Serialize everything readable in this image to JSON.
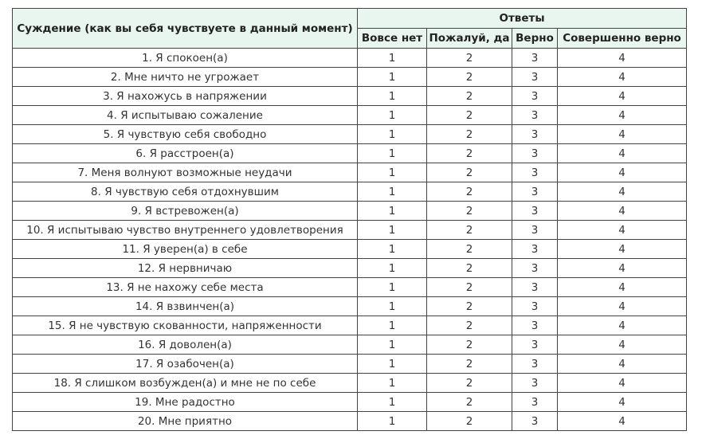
{
  "table": {
    "header": {
      "statement": "Суждение (как вы себя чувствуете в данный момент)",
      "answers": "Ответы",
      "columns": [
        "Вовсе нет",
        "Пожалуй, да",
        "Верно",
        "Совершенно верно"
      ]
    },
    "rows": [
      [
        "1. Я спокоен(а)",
        1,
        2,
        3,
        4
      ],
      [
        "2. Мне ничто не угрожает",
        1,
        2,
        3,
        4
      ],
      [
        "3. Я нахожусь в напряжении",
        1,
        2,
        3,
        4
      ],
      [
        "4. Я испытываю сожаление",
        1,
        2,
        3,
        4
      ],
      [
        "5. Я чувствую себя свободно",
        1,
        2,
        3,
        4
      ],
      [
        "6. Я расстроен(а)",
        1,
        2,
        3,
        4
      ],
      [
        "7. Меня волнуют возможные неудачи",
        1,
        2,
        3,
        4
      ],
      [
        "8. Я чувствую себя отдохнувшим",
        1,
        2,
        3,
        4
      ],
      [
        "9. Я встревожен(а)",
        1,
        2,
        3,
        4
      ],
      [
        "10. Я испытываю чувство внутреннего удовлетворения",
        1,
        2,
        3,
        4
      ],
      [
        "11. Я уверен(а) в себе",
        1,
        2,
        3,
        4
      ],
      [
        "12. Я нервничаю",
        1,
        2,
        3,
        4
      ],
      [
        "13. Я не нахожу себе места",
        1,
        2,
        3,
        4
      ],
      [
        "14. Я взвинчен(а)",
        1,
        2,
        3,
        4
      ],
      [
        "15. Я не чувствую скованности, напряженности",
        1,
        2,
        3,
        4
      ],
      [
        "16. Я доволен(а)",
        1,
        2,
        3,
        4
      ],
      [
        "17. Я озабочен(а)",
        1,
        2,
        3,
        4
      ],
      [
        "18. Я слишком возбужден(а) и мне не по себе",
        1,
        2,
        3,
        4
      ],
      [
        "19. Мне радостно",
        1,
        2,
        3,
        4
      ],
      [
        "20. Мне приятно",
        1,
        2,
        3,
        4
      ]
    ]
  }
}
